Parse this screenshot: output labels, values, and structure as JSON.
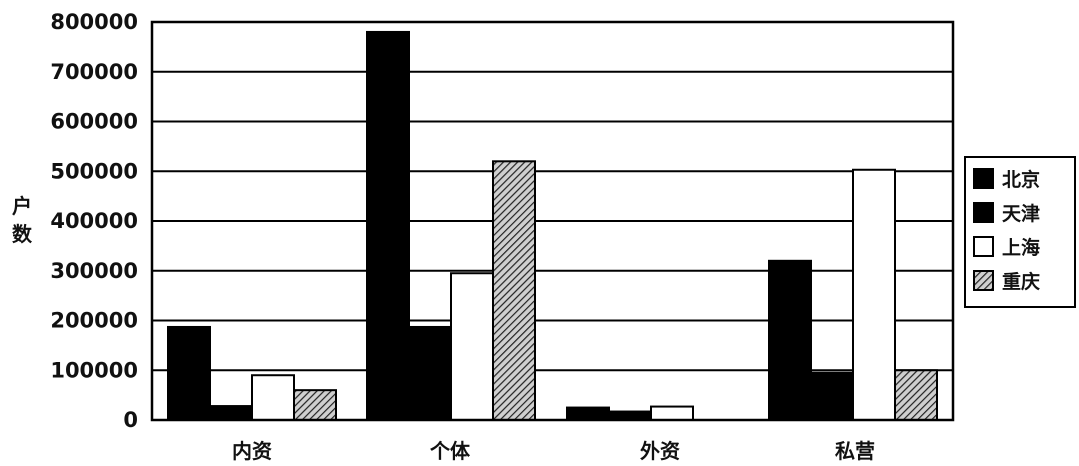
{
  "chart_data": {
    "type": "bar",
    "title": "",
    "xlabel": "",
    "ylabel": "户数",
    "categories": [
      "内资",
      "个体",
      "外资",
      "私营"
    ],
    "series": [
      {
        "name": "北京",
        "values": [
          187000,
          780000,
          25000,
          320000
        ],
        "fill": "#000000",
        "pattern": "solid"
      },
      {
        "name": "天津",
        "values": [
          28000,
          187000,
          17000,
          95000
        ],
        "fill": "#000000",
        "pattern": "solid"
      },
      {
        "name": "上海",
        "values": [
          90000,
          295000,
          27000,
          503000
        ],
        "fill": "#ffffff",
        "pattern": "solid"
      },
      {
        "name": "重庆",
        "values": [
          60000,
          520000,
          0,
          100000
        ],
        "fill": "#555555",
        "pattern": "hatch"
      }
    ],
    "ylim": [
      0,
      800000
    ],
    "yticks": [
      0,
      100000,
      200000,
      300000,
      400000,
      500000,
      600000,
      700000,
      800000
    ],
    "grid": true,
    "legend_position": "right"
  }
}
